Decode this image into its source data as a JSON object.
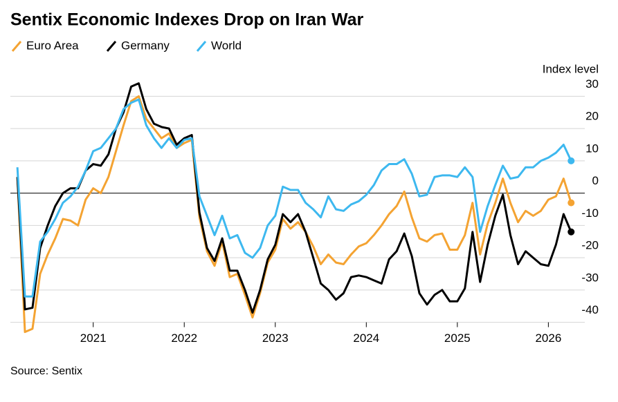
{
  "chart_data": {
    "type": "line",
    "title": "Sentix Economic Indexes Drop on Iran War",
    "y_axis_label": "Index level",
    "source": "Source: Sentix",
    "x": [
      2020.167,
      2020.25,
      2020.333,
      2020.417,
      2020.5,
      2020.583,
      2020.667,
      2020.75,
      2020.833,
      2020.917,
      2021,
      2021.083,
      2021.167,
      2021.25,
      2021.333,
      2021.417,
      2021.5,
      2021.583,
      2021.667,
      2021.75,
      2021.833,
      2021.917,
      2022,
      2022.083,
      2022.167,
      2022.25,
      2022.333,
      2022.417,
      2022.5,
      2022.583,
      2022.667,
      2022.75,
      2022.833,
      2022.917,
      2023,
      2023.083,
      2023.167,
      2023.25,
      2023.333,
      2023.417,
      2023.5,
      2023.583,
      2023.667,
      2023.75,
      2023.833,
      2023.917,
      2024,
      2024.083,
      2024.167,
      2024.25,
      2024.333,
      2024.417,
      2024.5,
      2024.583,
      2024.667,
      2024.75,
      2024.833,
      2024.917,
      2025,
      2025.083,
      2025.167,
      2025.25,
      2025.333,
      2025.417,
      2025.5,
      2025.583,
      2025.667,
      2025.75,
      2025.833,
      2025.917,
      2026,
      2026.083,
      2026.167,
      2026.25
    ],
    "series": [
      {
        "name": "Euro Area",
        "color": "#f4a332",
        "values": [
          5,
          -43,
          -42,
          -25,
          -19,
          -14,
          -8,
          -8.5,
          -10,
          -2,
          1.5,
          0,
          5,
          13,
          21,
          28.5,
          30,
          23,
          20,
          17,
          18.5,
          14,
          15.5,
          16.5,
          -7.5,
          -18,
          -22.5,
          -15,
          -26,
          -25,
          -31.5,
          -38.5,
          -31,
          -21.5,
          -17.5,
          -8,
          -11,
          -9,
          -12,
          -16.5,
          -22,
          -19,
          -21.5,
          -22,
          -19,
          -16.5,
          -15.5,
          -13,
          -10,
          -6.5,
          -4,
          0.5,
          -7.5,
          -14,
          -15,
          -13,
          -12.5,
          -17.5,
          -17.5,
          -13,
          -3,
          -19,
          -9.5,
          -3,
          4.5,
          -3,
          -9,
          -5.5,
          -7,
          -5.5,
          -2,
          -1,
          4.5,
          -3
        ]
      },
      {
        "name": "Germany",
        "color": "#000000",
        "values": [
          5,
          -36,
          -35.5,
          -17,
          -10,
          -4,
          0,
          1.5,
          1.5,
          7,
          9,
          8.5,
          12,
          20,
          25,
          33,
          34,
          26,
          21.5,
          20.5,
          20,
          15,
          17,
          18,
          -6,
          -17,
          -21,
          -14,
          -24,
          -24,
          -30,
          -37,
          -30,
          -20.5,
          -16,
          -6.5,
          -9,
          -6.5,
          -12,
          -20,
          -28,
          -30,
          -33,
          -31,
          -26,
          -25.5,
          -26,
          -27,
          -28,
          -20.5,
          -18,
          -12.5,
          -19.5,
          -31,
          -34.5,
          -31.5,
          -30,
          -33.5,
          -33.5,
          -29.5,
          -12,
          -27.5,
          -16,
          -7,
          -0.5,
          -13,
          -22,
          -18,
          -20,
          -22,
          -22.5,
          -16,
          -6.5,
          -12
        ]
      },
      {
        "name": "World",
        "color": "#3db8ef",
        "values": [
          8,
          -32,
          -32,
          -15,
          -12,
          -8,
          -3,
          -1,
          2,
          7,
          13,
          14,
          17,
          20,
          26,
          28,
          29,
          21,
          17,
          14,
          17,
          14,
          16.5,
          17,
          -1,
          -7,
          -13,
          -7,
          -14,
          -13,
          -18.5,
          -20,
          -17,
          -10,
          -7,
          2,
          1,
          1,
          -3,
          -5,
          -7.5,
          -1,
          -5,
          -5.5,
          -3.5,
          -2.5,
          -0.5,
          2.5,
          7,
          9,
          9,
          10.5,
          6,
          -1,
          -0.5,
          5,
          5.5,
          5.5,
          5,
          8,
          5,
          -12,
          -4,
          2.5,
          8.5,
          4.5,
          5,
          8,
          8,
          10,
          11,
          12.5,
          15,
          10
        ]
      }
    ],
    "xlim": [
      2020.09,
      2026.4
    ],
    "xticks": [
      2021,
      2022,
      2023,
      2024,
      2025,
      2026
    ],
    "ylim": [
      -45,
      35
    ],
    "yticks": [
      30,
      20,
      10,
      0,
      -10,
      -20,
      -30,
      -40
    ],
    "grid": true
  }
}
